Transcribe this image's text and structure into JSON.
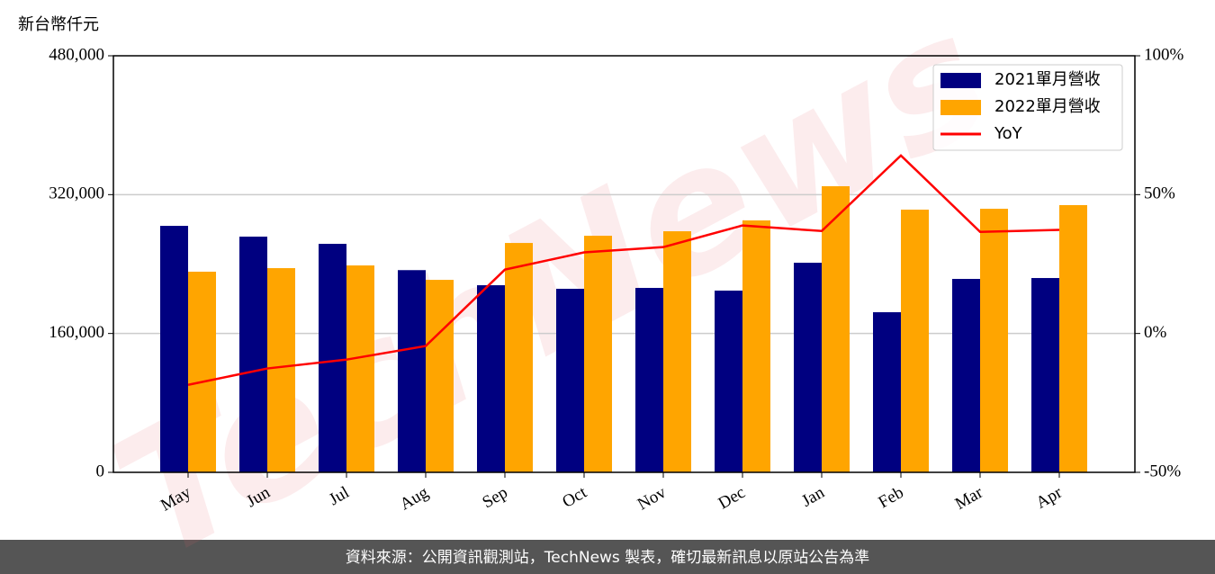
{
  "chart_data": {
    "type": "bar",
    "y_label": "新台幣仟元",
    "watermark": "TechNews",
    "source": "資料來源：公開資訊觀測站，TechNews 製表，確切最新訊息以原站公告為準",
    "categories": [
      "May",
      "Jun",
      "Jul",
      "Aug",
      "Sep",
      "Oct",
      "Nov",
      "Dec",
      "Jan",
      "Feb",
      "Mar",
      "Apr"
    ],
    "series": [
      {
        "name": "2021單月營收",
        "type": "bar",
        "color": "#000080",
        "values": [
          284000,
          271600,
          263300,
          233000,
          215600,
          211500,
          212500,
          209400,
          241500,
          184500,
          222900,
          223900
        ]
      },
      {
        "name": "2022單月營收",
        "type": "bar",
        "color": "#ffa500",
        "values": [
          231200,
          235300,
          238400,
          221800,
          264300,
          272600,
          277800,
          290300,
          329700,
          302700,
          303700,
          307900
        ]
      },
      {
        "name": "YoY",
        "type": "line",
        "axis": "y2",
        "color": "#ff0000",
        "values": [
          -18.5,
          -12.6,
          -9.4,
          -4.5,
          23.0,
          29.2,
          31.1,
          38.9,
          36.9,
          64.1,
          36.6,
          37.3
        ]
      }
    ],
    "ylim": [
      0,
      480000
    ],
    "yticks": [
      0,
      {
        "value": 160000,
        "label": "160,000"
      },
      {
        "value": 320000,
        "label": "320,000"
      },
      {
        "value": 480000,
        "label": "480,000"
      }
    ],
    "y2lim": [
      -50,
      100
    ],
    "y2ticks": [
      {
        "value": -50,
        "label": "-50%"
      },
      {
        "value": 0,
        "label": "0%"
      },
      {
        "value": 50,
        "label": "50%"
      },
      {
        "value": 100,
        "label": "100%"
      }
    ],
    "grid": true,
    "legend": "upper right"
  }
}
